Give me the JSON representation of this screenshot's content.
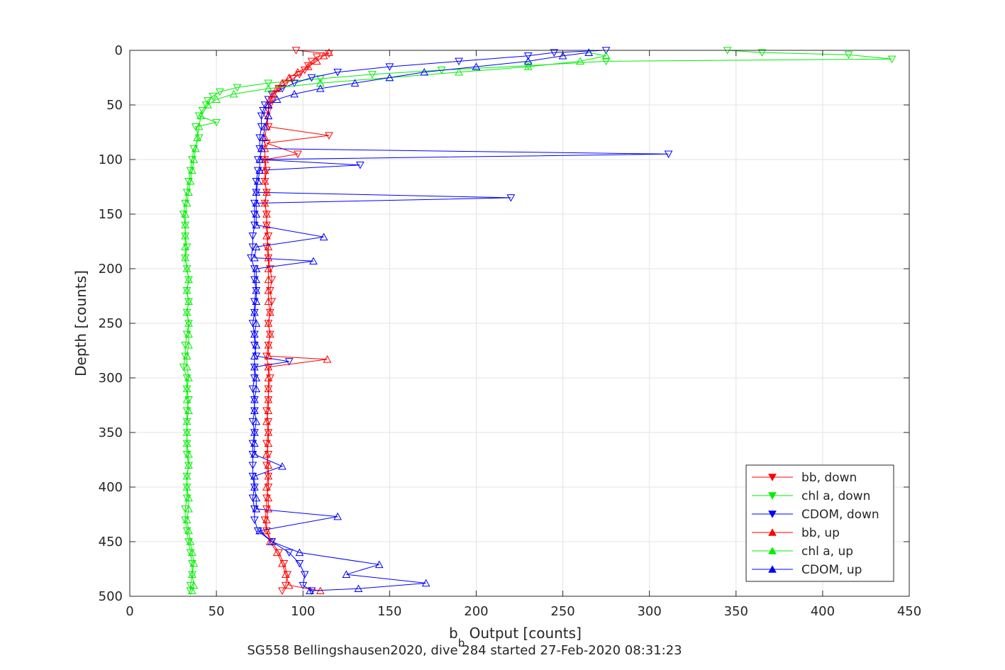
{
  "chart_data": {
    "type": "line",
    "title": "",
    "caption": "SG558 Bellingshausen2020, dive 284 started 27-Feb-2020 08:31:23",
    "xlabel_main": "b",
    "xlabel_sub": "b",
    "xlabel_rest": " Output [counts]",
    "ylabel": "Depth [counts]",
    "xlim": [
      0,
      450
    ],
    "ylim": [
      0,
      500
    ],
    "y_reversed": true,
    "grid": true,
    "legend_position": "bottom-right",
    "xticks": [
      0,
      50,
      100,
      150,
      200,
      250,
      300,
      350,
      400,
      450
    ],
    "yticks": [
      0,
      50,
      100,
      150,
      200,
      250,
      300,
      350,
      400,
      450,
      500
    ],
    "colors": {
      "red": "#ff0000",
      "green": "#00ee00",
      "blue": "#0000ff"
    },
    "series": [
      {
        "name": "bb, down",
        "marker": "triangle-down",
        "color": "#ff0000",
        "depth": [
          0,
          3,
          6,
          10,
          14,
          18,
          22,
          26,
          30,
          35,
          40,
          45,
          50,
          55,
          60,
          70,
          78,
          85,
          95,
          100,
          110,
          120,
          130,
          140,
          150,
          160,
          170,
          180,
          190,
          200,
          210,
          220,
          230,
          240,
          250,
          260,
          270,
          280,
          290,
          300,
          310,
          320,
          330,
          340,
          350,
          360,
          370,
          380,
          390,
          400,
          410,
          420,
          430,
          440,
          450,
          460,
          470,
          480,
          490,
          495
        ],
        "value": [
          96,
          115,
          108,
          105,
          103,
          101,
          98,
          94,
          90,
          86,
          83,
          82,
          81,
          80,
          79,
          80,
          115,
          79,
          97,
          78,
          79,
          78,
          79,
          78,
          79,
          79,
          80,
          79,
          80,
          81,
          82,
          81,
          82,
          81,
          80,
          81,
          80,
          79,
          80,
          81,
          80,
          80,
          79,
          80,
          80,
          79,
          80,
          79,
          80,
          80,
          79,
          79,
          78,
          79,
          82,
          86,
          89,
          91,
          90,
          88
        ]
      },
      {
        "name": "chl a, down",
        "marker": "triangle-down",
        "color": "#00ee00",
        "depth": [
          0,
          2,
          4,
          8,
          10,
          14,
          18,
          22,
          26,
          30,
          34,
          38,
          42,
          46,
          50,
          55,
          60,
          66,
          70,
          80,
          90,
          100,
          110,
          120,
          130,
          140,
          150,
          160,
          170,
          180,
          190,
          200,
          210,
          220,
          230,
          240,
          250,
          260,
          270,
          280,
          290,
          300,
          310,
          320,
          330,
          340,
          350,
          360,
          370,
          380,
          390,
          400,
          410,
          420,
          430,
          440,
          450,
          460,
          470,
          480,
          490,
          495
        ],
        "value": [
          345,
          365,
          415,
          440,
          275,
          230,
          180,
          140,
          110,
          80,
          62,
          52,
          48,
          45,
          44,
          42,
          40,
          50,
          38,
          40,
          37,
          36,
          35,
          34,
          33,
          32,
          31,
          32,
          32,
          33,
          32,
          33,
          34,
          33,
          34,
          33,
          34,
          33,
          32,
          32,
          31,
          33,
          33,
          34,
          33,
          33,
          33,
          33,
          33,
          34,
          33,
          33,
          33,
          32,
          32,
          33,
          34,
          35,
          36,
          36,
          35,
          35
        ]
      },
      {
        "name": "CDOM, down",
        "marker": "triangle-down",
        "color": "#0000ff",
        "depth": [
          0,
          2,
          5,
          10,
          15,
          20,
          25,
          30,
          35,
          40,
          45,
          50,
          55,
          60,
          70,
          80,
          90,
          95,
          100,
          105,
          110,
          120,
          130,
          135,
          140,
          150,
          160,
          170,
          180,
          190,
          200,
          210,
          220,
          230,
          240,
          250,
          260,
          270,
          280,
          285,
          290,
          300,
          310,
          320,
          330,
          340,
          350,
          360,
          370,
          380,
          390,
          400,
          410,
          420,
          430,
          440,
          450,
          460,
          470,
          480,
          490,
          495
        ],
        "value": [
          275,
          245,
          230,
          190,
          150,
          120,
          105,
          95,
          88,
          82,
          80,
          78,
          77,
          76,
          76,
          75,
          75,
          311,
          74,
          133,
          74,
          73,
          73,
          220,
          72,
          72,
          72,
          71,
          71,
          70,
          72,
          72,
          73,
          72,
          72,
          71,
          72,
          72,
          73,
          92,
          72,
          72,
          71,
          72,
          72,
          71,
          72,
          71,
          71,
          71,
          71,
          72,
          71,
          72,
          72,
          74,
          82,
          92,
          98,
          101,
          100,
          105
        ]
      },
      {
        "name": "bb, up",
        "marker": "triangle-up",
        "color": "#ff0000",
        "depth": [
          495,
          490,
          480,
          470,
          460,
          450,
          440,
          430,
          420,
          410,
          400,
          390,
          380,
          370,
          360,
          350,
          340,
          330,
          320,
          310,
          300,
          290,
          283,
          280,
          270,
          260,
          250,
          240,
          230,
          220,
          210,
          200,
          190,
          180,
          170,
          160,
          150,
          140,
          130,
          120,
          110,
          100,
          90,
          80,
          70,
          60,
          50,
          45,
          40,
          35,
          30,
          25,
          20,
          15,
          10,
          5,
          2
        ],
        "value": [
          110,
          92,
          90,
          88,
          85,
          81,
          79,
          79,
          80,
          80,
          79,
          80,
          80,
          79,
          80,
          80,
          79,
          80,
          80,
          80,
          80,
          80,
          114,
          80,
          80,
          81,
          80,
          81,
          80,
          80,
          80,
          80,
          80,
          80,
          79,
          79,
          79,
          78,
          79,
          78,
          78,
          78,
          78,
          78,
          79,
          80,
          80,
          81,
          83,
          85,
          88,
          92,
          97,
          103,
          108,
          112,
          115
        ]
      },
      {
        "name": "chl a, up",
        "marker": "triangle-up",
        "color": "#00ee00",
        "depth": [
          495,
          490,
          480,
          470,
          460,
          450,
          440,
          430,
          420,
          410,
          400,
          390,
          380,
          370,
          360,
          350,
          340,
          330,
          320,
          310,
          300,
          290,
          280,
          270,
          260,
          250,
          240,
          230,
          220,
          210,
          200,
          190,
          180,
          170,
          160,
          150,
          140,
          130,
          120,
          110,
          100,
          90,
          80,
          70,
          60,
          50,
          45,
          40,
          35,
          30,
          25,
          20,
          15,
          10,
          5,
          2
        ],
        "value": [
          36,
          37,
          36,
          37,
          36,
          35,
          34,
          33,
          34,
          34,
          33,
          33,
          34,
          34,
          33,
          33,
          33,
          34,
          33,
          33,
          34,
          33,
          33,
          34,
          34,
          34,
          33,
          34,
          33,
          34,
          33,
          32,
          32,
          32,
          32,
          32,
          33,
          34,
          35,
          36,
          37,
          38,
          39,
          40,
          41,
          45,
          50,
          60,
          80,
          110,
          150,
          190,
          230,
          260,
          275,
          265
        ]
      },
      {
        "name": "CDOM, up",
        "marker": "triangle-up",
        "color": "#0000ff",
        "depth": [
          495,
          493,
          488,
          480,
          471,
          460,
          450,
          440,
          427,
          420,
          410,
          400,
          390,
          381,
          370,
          360,
          350,
          340,
          330,
          320,
          310,
          300,
          290,
          280,
          270,
          260,
          250,
          240,
          230,
          220,
          210,
          200,
          193,
          190,
          180,
          171,
          160,
          150,
          140,
          130,
          120,
          110,
          100,
          90,
          80,
          70,
          60,
          50,
          45,
          40,
          35,
          30,
          25,
          20,
          15,
          10,
          5,
          2
        ],
        "value": [
          104,
          132,
          171,
          125,
          144,
          98,
          82,
          75,
          120,
          73,
          73,
          72,
          72,
          88,
          72,
          72,
          72,
          73,
          72,
          72,
          73,
          73,
          72,
          72,
          73,
          72,
          73,
          72,
          73,
          73,
          73,
          73,
          106,
          72,
          73,
          112,
          73,
          73,
          73,
          73,
          74,
          75,
          75,
          76,
          77,
          78,
          80,
          80,
          85,
          95,
          110,
          130,
          150,
          170,
          200,
          230,
          250,
          265
        ]
      }
    ]
  }
}
